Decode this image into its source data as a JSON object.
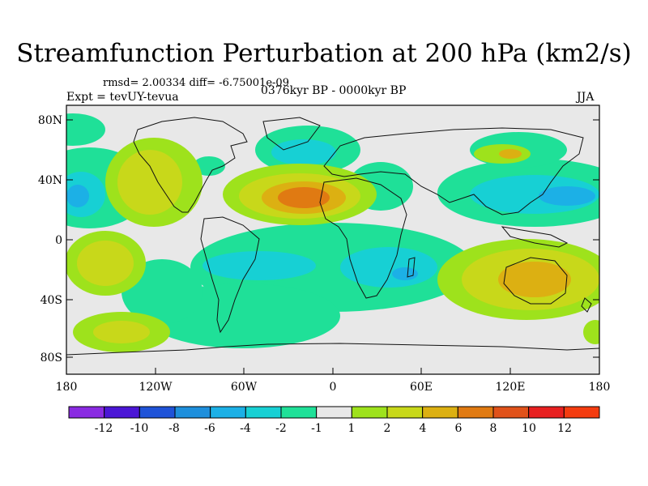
{
  "title": "Streamfunction Perturbation at 200 hPa (km2/s)",
  "stats": "rmsd= 2.00334  diff= -6.75001e-09",
  "experiment": "Expt = tevUY-tevua",
  "period": "0376kyr BP - 0000kyr BP",
  "season": "JJA",
  "map": {
    "lat_ticks": [
      "80N",
      "40N",
      "0",
      "40S",
      "80S"
    ],
    "lon_ticks": [
      "180",
      "120W",
      "60W",
      "0",
      "60E",
      "120E",
      "180"
    ],
    "background_color": "#e8e8e8"
  },
  "colorbar": {
    "labels": [
      "-12",
      "-10",
      "-8",
      "-6",
      "-4",
      "-2",
      "-1",
      "1",
      "2",
      "4",
      "6",
      "8",
      "10",
      "12"
    ],
    "colors": [
      "#8a2be2",
      "#4b16d6",
      "#1f53d8",
      "#1e8fdc",
      "#1cb0e6",
      "#17d0d4",
      "#1fe098",
      "#e8e8e8",
      "#9ee21c",
      "#c8d81a",
      "#dcb012",
      "#e07a12",
      "#e0521a",
      "#e82020",
      "#f43c10"
    ]
  }
}
